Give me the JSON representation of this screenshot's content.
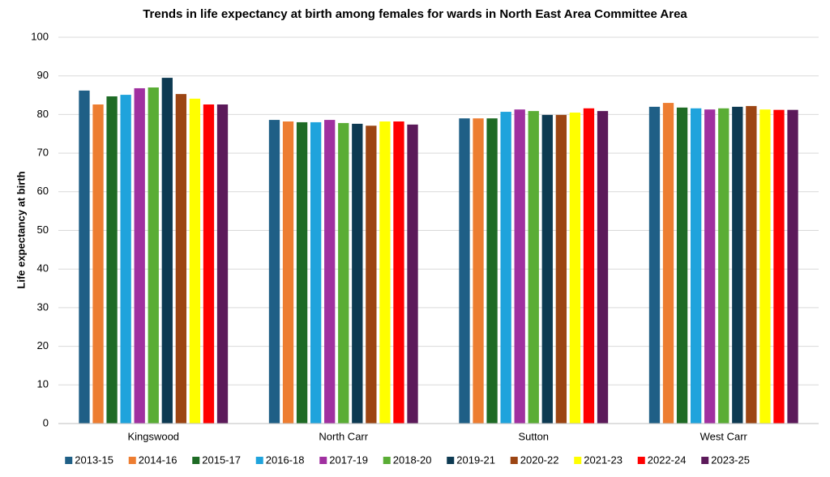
{
  "chart_data": {
    "type": "bar",
    "title": "Trends in life expectancy at birth among females for wards in North East Area Committee Area",
    "y_label": "Life expectancy at birth",
    "categories": [
      "Kingswood",
      "North Carr",
      "Sutton",
      "West Carr"
    ],
    "series": [
      {
        "name": "2013-15",
        "color": "#1f5f86",
        "values": [
          86.2,
          78.6,
          79.0,
          82.0
        ]
      },
      {
        "name": "2014-16",
        "color": "#ed7d31",
        "values": [
          82.6,
          78.2,
          79.0,
          83.0
        ]
      },
      {
        "name": "2015-17",
        "color": "#1e6b25",
        "values": [
          84.7,
          78.0,
          79.0,
          81.8
        ]
      },
      {
        "name": "2016-18",
        "color": "#1fa3dc",
        "values": [
          85.1,
          78.0,
          80.7,
          81.6
        ]
      },
      {
        "name": "2017-19",
        "color": "#a030a0",
        "values": [
          86.8,
          78.6,
          81.3,
          81.3
        ]
      },
      {
        "name": "2018-20",
        "color": "#5aad35",
        "values": [
          87.0,
          77.8,
          80.9,
          81.6
        ]
      },
      {
        "name": "2019-21",
        "color": "#0d3a52",
        "values": [
          89.5,
          77.6,
          79.9,
          82.0
        ]
      },
      {
        "name": "2020-22",
        "color": "#9c4513",
        "values": [
          85.3,
          77.1,
          79.9,
          82.2
        ]
      },
      {
        "name": "2021-23",
        "color": "#ffff00",
        "values": [
          84.1,
          78.2,
          80.5,
          81.3
        ]
      },
      {
        "name": "2022-24",
        "color": "#ff0000",
        "values": [
          82.6,
          78.2,
          81.6,
          81.2
        ]
      },
      {
        "name": "2023-25",
        "color": "#5c1a5a",
        "values": [
          82.6,
          77.4,
          80.9,
          81.2
        ]
      }
    ],
    "ylim": [
      0,
      100
    ],
    "yticks": [
      0,
      10,
      20,
      30,
      40,
      50,
      60,
      70,
      80,
      90,
      100
    ],
    "grid": true,
    "legend": "bottom"
  }
}
